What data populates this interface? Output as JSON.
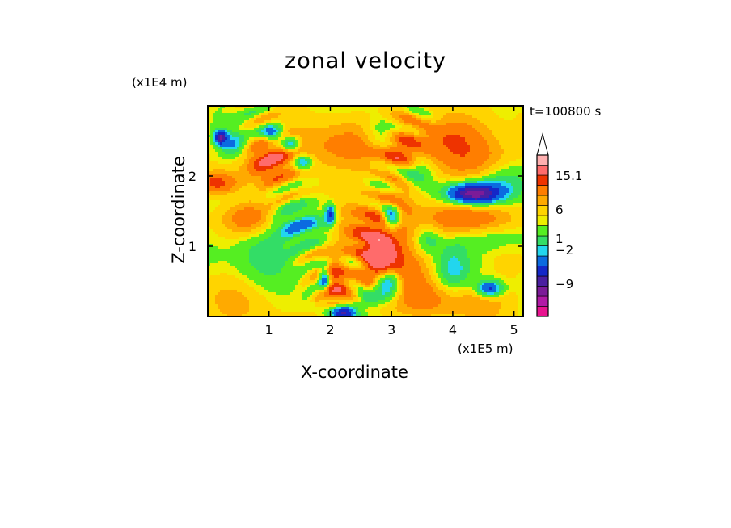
{
  "chart_data": {
    "type": "heatmap",
    "title": "zonal velocity",
    "xlabel": "X-coordinate",
    "ylabel": "Z-coordinate",
    "x_unit": "(x1E5 m)",
    "z_unit": "(x1E4 m)",
    "time_label": "t=100800 s",
    "xlim": [
      0,
      5.15
    ],
    "ylim": [
      0,
      3.0
    ],
    "x_ticks": [
      1,
      2,
      3,
      4,
      5
    ],
    "z_ticks": [
      1,
      2
    ],
    "colorbar": {
      "colors": [
        "#e8138f",
        "#b21aa6",
        "#7c1b98",
        "#4a1fa0",
        "#1428c8",
        "#0b6be0",
        "#22d6ee",
        "#33dd66",
        "#55ee22",
        "#eeee00",
        "#ffd400",
        "#ffaa00",
        "#ff7e00",
        "#ee3300",
        "#ff6b6b",
        "#ffb0b0",
        "#ffffff"
      ],
      "labels": [
        {
          "value": "15.1",
          "level": 0.87
        },
        {
          "value": "6",
          "level": 0.66
        },
        {
          "value": "1",
          "level": 0.48
        },
        {
          "value": "−2",
          "level": 0.41
        },
        {
          "value": "−9",
          "level": 0.2
        }
      ]
    },
    "features": [
      {
        "x": 2.1,
        "z": 2.4,
        "value": 3,
        "sx": 0.9,
        "sz": 0.25
      },
      {
        "x": 0.7,
        "z": 1.4,
        "value": 4,
        "sx": 0.35,
        "sz": 0.18
      },
      {
        "x": 1.0,
        "z": 2.2,
        "value": 4,
        "sx": 0.25,
        "sz": 0.2
      },
      {
        "x": 0.15,
        "z": 1.9,
        "value": 5,
        "sx": 0.25,
        "sz": 0.12
      },
      {
        "x": 3.15,
        "z": 2.2,
        "value": 4,
        "sx": 0.2,
        "sz": 0.6
      },
      {
        "x": 2.5,
        "z": 0.9,
        "value": 5,
        "sx": 0.3,
        "sz": 0.4
      },
      {
        "x": 2.85,
        "z": 1.0,
        "value": 5,
        "sx": 0.2,
        "sz": 0.3
      },
      {
        "x": 4.3,
        "z": 1.35,
        "value": 5,
        "sx": 0.5,
        "sz": 0.2
      },
      {
        "x": 4.4,
        "z": 2.25,
        "value": 3,
        "sx": 0.45,
        "sz": 0.22
      },
      {
        "x": 3.2,
        "z": 0.7,
        "value": 3,
        "sx": 0.35,
        "sz": 0.25
      },
      {
        "x": 3.9,
        "z": 0.25,
        "value": 3,
        "sx": 0.7,
        "sz": 0.2
      },
      {
        "x": 4.0,
        "z": 2.6,
        "value": 3,
        "sx": 0.5,
        "sz": 0.2
      },
      {
        "x": 2.1,
        "z": 0.45,
        "value": 4,
        "sx": 0.15,
        "sz": 0.25
      },
      {
        "x": 0.6,
        "z": 0.35,
        "value": 1.5,
        "sx": 0.6,
        "sz": 0.35
      },
      {
        "x": 0.9,
        "z": 0.9,
        "value": -3,
        "sx": 0.35,
        "sz": 0.35
      },
      {
        "x": 0.4,
        "z": 2.45,
        "value": -4,
        "sx": 0.15,
        "sz": 0.12
      },
      {
        "x": 0.2,
        "z": 2.55,
        "value": -9,
        "sx": 0.07,
        "sz": 0.07
      },
      {
        "x": 1.05,
        "z": 2.6,
        "value": -6,
        "sx": 0.12,
        "sz": 0.08
      },
      {
        "x": 1.35,
        "z": 2.45,
        "value": -5,
        "sx": 0.1,
        "sz": 0.07
      },
      {
        "x": 1.55,
        "z": 2.2,
        "value": -5,
        "sx": 0.1,
        "sz": 0.07
      },
      {
        "x": 1.5,
        "z": 1.3,
        "value": -3,
        "sx": 0.3,
        "sz": 0.15
      },
      {
        "x": 2.0,
        "z": 1.45,
        "value": -6,
        "sx": 0.06,
        "sz": 0.1
      },
      {
        "x": 1.9,
        "z": 0.55,
        "value": -6,
        "sx": 0.06,
        "sz": 0.12
      },
      {
        "x": 2.35,
        "z": 0.75,
        "value": -4,
        "sx": 0.2,
        "sz": 0.2
      },
      {
        "x": 2.95,
        "z": 2.6,
        "value": -4,
        "sx": 0.25,
        "sz": 0.15
      },
      {
        "x": 3.3,
        "z": 2.05,
        "value": -4,
        "sx": 0.25,
        "sz": 0.15
      },
      {
        "x": 3.0,
        "z": 1.4,
        "value": -7,
        "sx": 0.1,
        "sz": 0.12
      },
      {
        "x": 2.95,
        "z": 0.5,
        "value": -7,
        "sx": 0.15,
        "sz": 0.12
      },
      {
        "x": 2.75,
        "z": 0.3,
        "value": -4,
        "sx": 0.25,
        "sz": 0.1
      },
      {
        "x": 4.35,
        "z": 1.75,
        "value": -11,
        "sx": 0.3,
        "sz": 0.1
      },
      {
        "x": 4.5,
        "z": 1.15,
        "value": -3,
        "sx": 0.45,
        "sz": 0.15
      },
      {
        "x": 4.0,
        "z": 0.65,
        "value": -3,
        "sx": 0.2,
        "sz": 0.3
      },
      {
        "x": 4.6,
        "z": 0.4,
        "value": -7,
        "sx": 0.15,
        "sz": 0.08
      },
      {
        "x": 4.9,
        "z": 1.9,
        "value": -3,
        "sx": 0.3,
        "sz": 0.2
      },
      {
        "x": 2.2,
        "z": 0.05,
        "value": -9,
        "sx": 0.15,
        "sz": 0.07
      },
      {
        "x": 3.6,
        "z": 1.1,
        "value": -3,
        "sx": 0.15,
        "sz": 0.15
      }
    ]
  }
}
